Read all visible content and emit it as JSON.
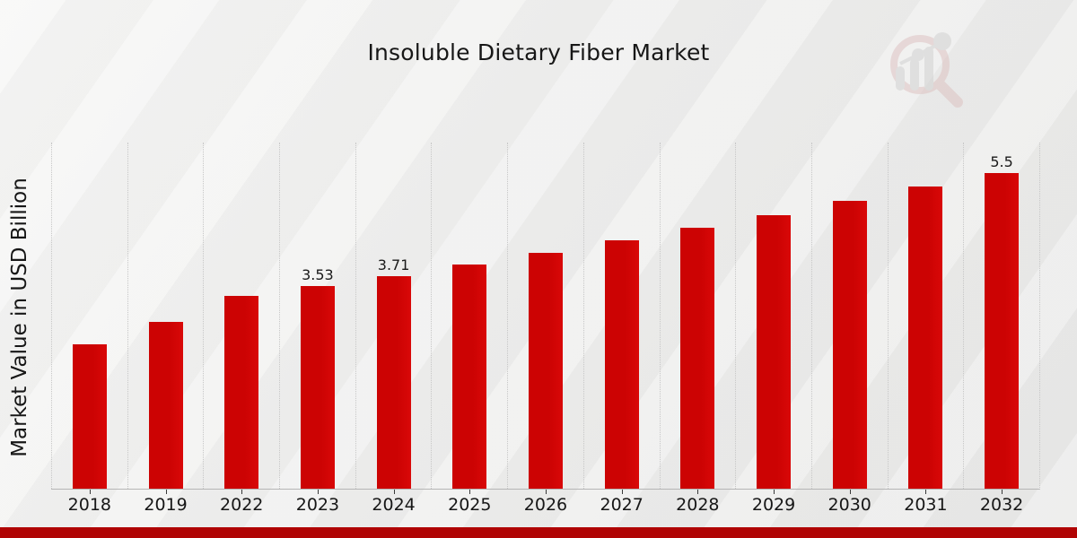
{
  "chart_data": {
    "type": "bar",
    "title": "Insoluble Dietary Fiber Market",
    "xlabel": "",
    "ylabel": "Market Value in USD Billion",
    "categories": [
      "2018",
      "2019",
      "2022",
      "2023",
      "2024",
      "2025",
      "2026",
      "2027",
      "2028",
      "2029",
      "2030",
      "2031",
      "2032"
    ],
    "values": [
      2.51,
      2.9,
      3.36,
      3.53,
      3.71,
      3.91,
      4.11,
      4.33,
      4.54,
      4.76,
      5.01,
      5.27,
      5.5
    ],
    "bar_labels": [
      "",
      "",
      "",
      "3.53",
      "3.71",
      "",
      "",
      "",
      "",
      "",
      "",
      "",
      "5.5"
    ],
    "ylim": [
      0,
      6.03
    ],
    "grid": "vertical-dotted-band-edges",
    "legend": "none",
    "bar_color": "#cc0303"
  },
  "branding": {
    "logo": "magnifier-bar-chart-logo",
    "logo_ring_color": "#dcbfbf",
    "logo_bars_color": "#cfcfcf",
    "accent_bar_color": "#b00404"
  }
}
